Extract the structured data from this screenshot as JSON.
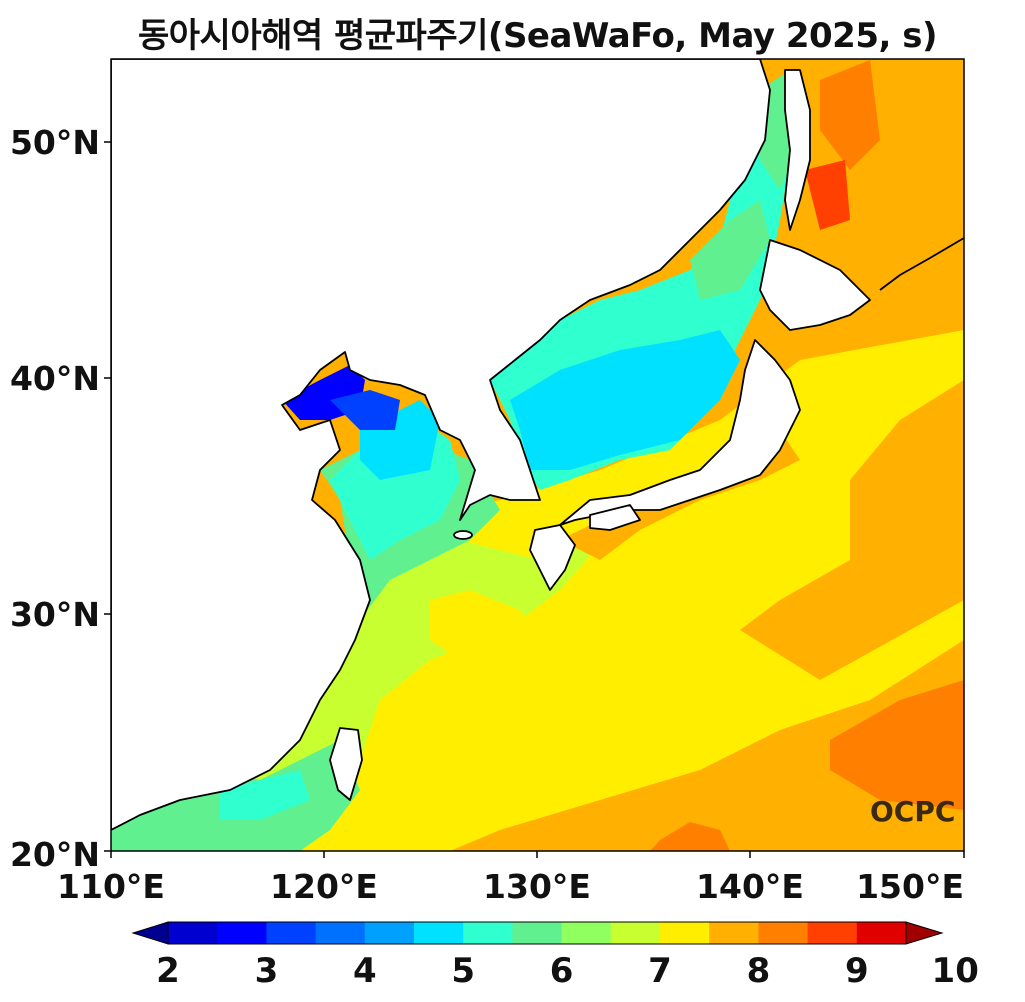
{
  "title": "동아시아해역 평균파주기(SeaWaFo, May 2025, s)",
  "logo_text": "OCPC",
  "x_ticks": [
    "110°E",
    "120°E",
    "130°E",
    "140°E",
    "150°E"
  ],
  "y_ticks": [
    "50°N",
    "40°N",
    "30°N",
    "20°N"
  ],
  "colorbar": {
    "labels": [
      "2",
      "3",
      "4",
      "5",
      "6",
      "7",
      "8",
      "9",
      "10"
    ],
    "colors": [
      "#000090",
      "#0000d0",
      "#0000ff",
      "#0040ff",
      "#0070ff",
      "#00a0ff",
      "#00e0ff",
      "#30ffd0",
      "#60f090",
      "#90ff60",
      "#c8ff30",
      "#ffee00",
      "#ffb000",
      "#ff8000",
      "#ff4000",
      "#e00000",
      "#a00000"
    ]
  },
  "map": {
    "lon_range": [
      110,
      150
    ],
    "lat_range": [
      20,
      53.5
    ],
    "land_color": "#ffffff",
    "ocean_background_color": "#ffb000"
  }
}
